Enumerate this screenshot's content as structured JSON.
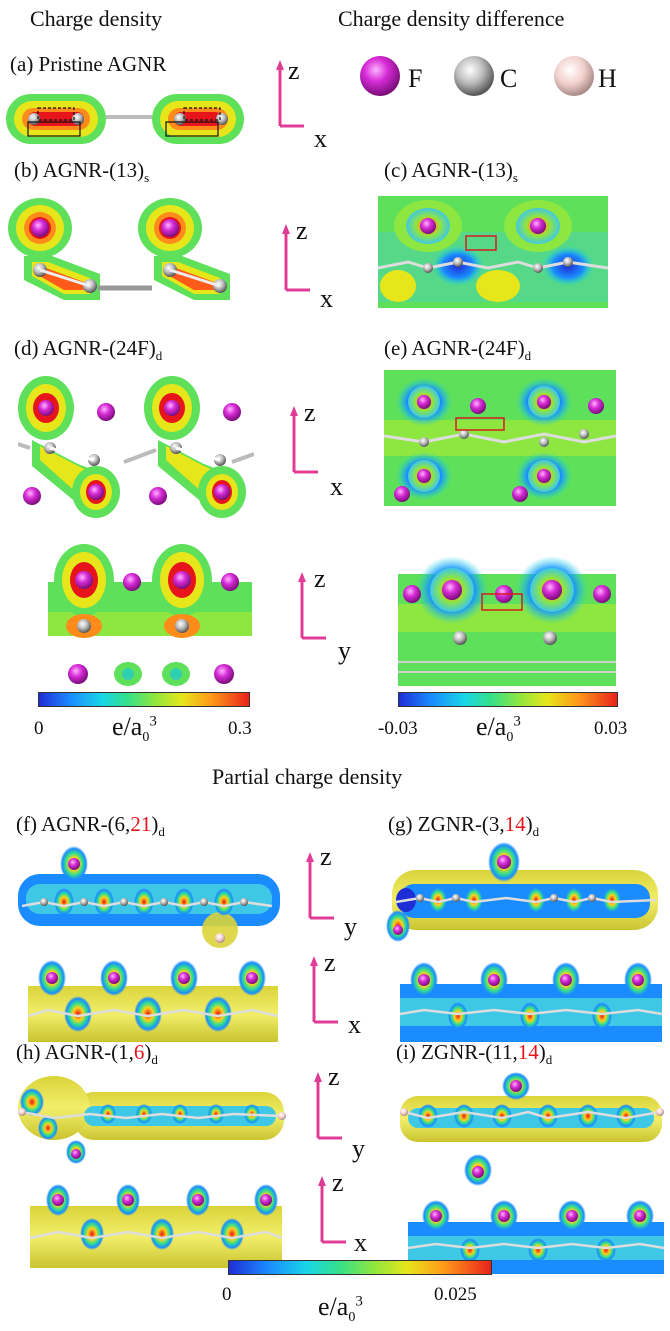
{
  "headings": {
    "charge_density": "Charge density",
    "charge_density_difference": "Charge density difference",
    "partial_charge_density": "Partial charge density"
  },
  "legend": {
    "f": "F",
    "c": "C",
    "h": "H",
    "f_color": "#d62bd6",
    "c_color": "#b8b8b8",
    "h_color": "#f2d0cc"
  },
  "panels": {
    "a": {
      "prefix": "(a) Pristine AGNR"
    },
    "b": {
      "prefix": "(b) AGNR-(13)",
      "sub": "s"
    },
    "c": {
      "prefix": "(c) AGNR-(13)",
      "sub": "s"
    },
    "d": {
      "prefix": "(d) AGNR-(24F)",
      "sub": "d"
    },
    "e": {
      "prefix": "(e) AGNR-(24F)",
      "sub": "d"
    },
    "f": {
      "prefix": "(f) AGNR-(6,",
      "red": "21",
      "suffix": ")",
      "sub": "d"
    },
    "g": {
      "prefix": "(g) ZGNR-(3,",
      "red": "14",
      "suffix": ")",
      "sub": "d"
    },
    "h": {
      "prefix": "(h) AGNR-(1,",
      "red": "6",
      "suffix": ")",
      "sub": "d"
    },
    "i": {
      "prefix": "(i) ZGNR-(11,",
      "red": "14",
      "suffix": ")",
      "sub": "d"
    }
  },
  "axes": {
    "z": "z",
    "x": "x",
    "y": "y"
  },
  "colorbars": {
    "density": {
      "min": "0",
      "max": "0.3"
    },
    "difference": {
      "min": "-0.03",
      "max": "0.03"
    },
    "partial": {
      "min": "0",
      "max": "0.025"
    },
    "unit_main": "e/a",
    "unit_sub": "0",
    "unit_sup": "3"
  }
}
